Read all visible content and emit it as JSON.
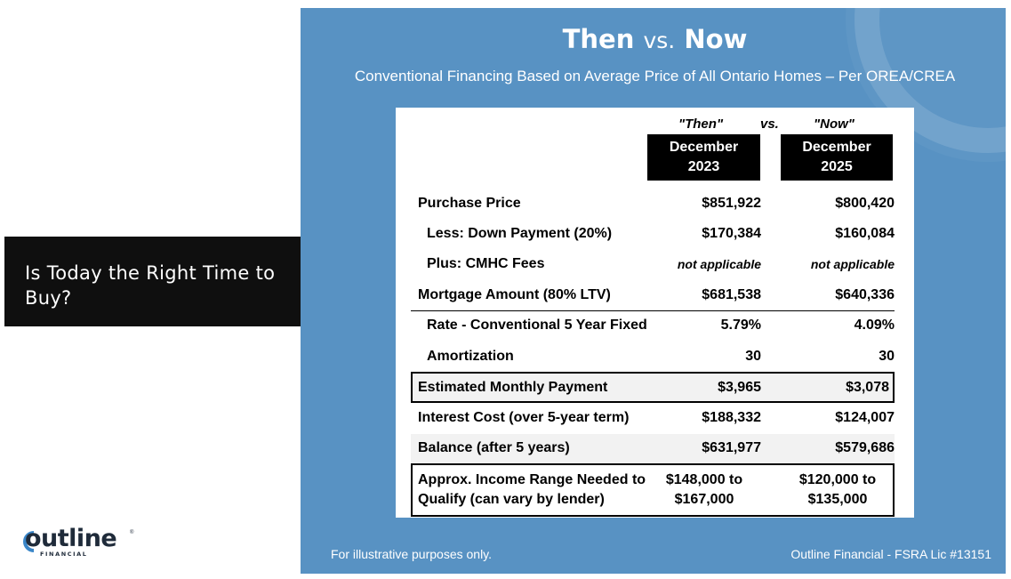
{
  "slide_title": "Is Today the Right Time to Buy?",
  "logo": {
    "word": "outline",
    "sub": "FINANCIAL",
    "reg": "®"
  },
  "panel": {
    "title_then": "Then",
    "title_vs": "vs.",
    "title_now": "Now",
    "subtitle": "Conventional Financing Based on Average Price of All Ontario Homes – Per OREA/CREA",
    "footer_left": "For illustrative purposes only.",
    "footer_right": "Outline Financial - FSRA Lic #13151"
  },
  "table": {
    "then_label": "\"Then\"",
    "vs_label": "vs.",
    "now_label": "\"Now\"",
    "col1_month": "December",
    "col1_year": "2023",
    "col2_month": "December",
    "col2_year": "2025",
    "rows": [
      {
        "label": "Purchase Price",
        "v1": "$851,922",
        "v2": "$800,420"
      },
      {
        "label": "Less: Down Payment (20%)",
        "v1": "$170,384",
        "v2": "$160,084"
      },
      {
        "label": "Plus: CMHC Fees",
        "v1": "not applicable",
        "v2": "not applicable"
      },
      {
        "label": "Mortgage Amount (80% LTV)",
        "v1": "$681,538",
        "v2": "$640,336"
      },
      {
        "label": "Rate - Conventional 5 Year Fixed",
        "v1": "5.79%",
        "v2": "4.09%"
      },
      {
        "label": "Amortization",
        "v1": "30",
        "v2": "30"
      },
      {
        "label": "Estimated Monthly Payment",
        "v1": "$3,965",
        "v2": "$3,078"
      },
      {
        "label": "Interest Cost (over 5-year term)",
        "v1": "$188,332",
        "v2": "$124,007"
      },
      {
        "label": "Balance (after 5 years)",
        "v1": "$631,977",
        "v2": "$579,686"
      }
    ],
    "income": {
      "label_line1": "Approx. Income Range Needed to",
      "label_line2": "Qualify (can vary by lender)",
      "v1_line1": "$148,000 to",
      "v1_line2": "$167,000",
      "v2_line1": "$120,000 to",
      "v2_line2": "$135,000"
    }
  }
}
